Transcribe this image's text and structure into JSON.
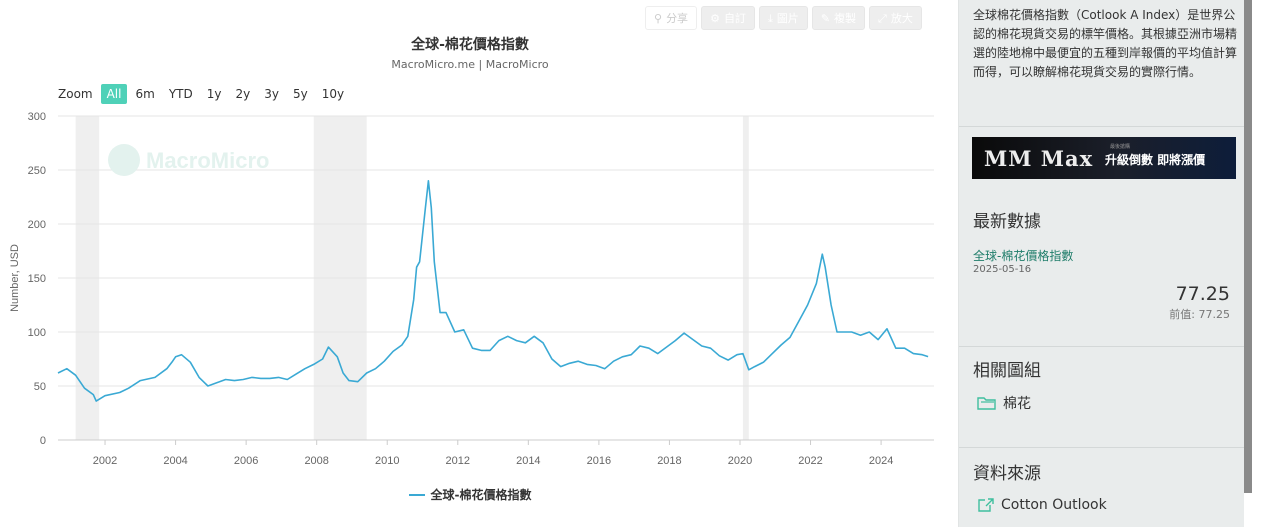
{
  "toolbar": {
    "share_label": "分享",
    "custom_label": "自訂",
    "image_label": "圖片",
    "copy_label": "複製",
    "enlarge_label": "放大"
  },
  "zoom": {
    "label": "Zoom",
    "options": [
      "All",
      "6m",
      "YTD",
      "1y",
      "2y",
      "3y",
      "5y",
      "10y"
    ],
    "active": "All"
  },
  "watermark": "MacroMicro",
  "colors": {
    "series": "#3aa9d4",
    "recession": "#efefef",
    "accent": "#4fd1b8",
    "link": "#1f7d6a"
  },
  "chart_data": {
    "type": "line",
    "title": "全球-棉花價格指數",
    "subtitle": "MacroMicro.me | MacroMicro",
    "ylabel": "Number, USD",
    "xlabel": "",
    "ylim": [
      0,
      300
    ],
    "yticks": [
      0,
      50,
      100,
      150,
      200,
      250,
      300
    ],
    "xticks": [
      "2002",
      "2004",
      "2006",
      "2008",
      "2010",
      "2012",
      "2014",
      "2016",
      "2018",
      "2020",
      "2022",
      "2024"
    ],
    "grid": true,
    "legend_position": "bottom",
    "recession_bands": [
      [
        "2001-03",
        "2001-11"
      ],
      [
        "2007-12",
        "2009-06"
      ],
      [
        "2020-02",
        "2020-04"
      ]
    ],
    "series": [
      {
        "name": "全球-棉花價格指數",
        "points": [
          [
            "2000-09",
            62
          ],
          [
            "2000-12",
            66
          ],
          [
            "2001-03",
            60
          ],
          [
            "2001-06",
            48
          ],
          [
            "2001-09",
            42
          ],
          [
            "2001-10",
            36
          ],
          [
            "2002-01",
            41
          ],
          [
            "2002-06",
            44
          ],
          [
            "2002-09",
            48
          ],
          [
            "2003-01",
            55
          ],
          [
            "2003-06",
            58
          ],
          [
            "2003-10",
            66
          ],
          [
            "2003-12",
            73
          ],
          [
            "2004-01",
            77
          ],
          [
            "2004-03",
            79
          ],
          [
            "2004-06",
            72
          ],
          [
            "2004-09",
            58
          ],
          [
            "2004-12",
            50
          ],
          [
            "2005-03",
            53
          ],
          [
            "2005-06",
            56
          ],
          [
            "2005-09",
            55
          ],
          [
            "2005-12",
            56
          ],
          [
            "2006-03",
            58
          ],
          [
            "2006-06",
            57
          ],
          [
            "2006-09",
            57
          ],
          [
            "2006-12",
            58
          ],
          [
            "2007-03",
            56
          ],
          [
            "2007-06",
            61
          ],
          [
            "2007-09",
            66
          ],
          [
            "2007-12",
            70
          ],
          [
            "2008-03",
            75
          ],
          [
            "2008-05",
            86
          ],
          [
            "2008-08",
            77
          ],
          [
            "2008-10",
            62
          ],
          [
            "2008-12",
            55
          ],
          [
            "2009-03",
            54
          ],
          [
            "2009-06",
            62
          ],
          [
            "2009-09",
            66
          ],
          [
            "2009-12",
            73
          ],
          [
            "2010-03",
            82
          ],
          [
            "2010-06",
            88
          ],
          [
            "2010-08",
            96
          ],
          [
            "2010-10",
            130
          ],
          [
            "2010-11",
            160
          ],
          [
            "2010-12",
            165
          ],
          [
            "2011-02",
            215
          ],
          [
            "2011-03",
            240
          ],
          [
            "2011-04",
            215
          ],
          [
            "2011-05",
            165
          ],
          [
            "2011-07",
            118
          ],
          [
            "2011-09",
            118
          ],
          [
            "2011-12",
            100
          ],
          [
            "2012-03",
            102
          ],
          [
            "2012-06",
            85
          ],
          [
            "2012-09",
            83
          ],
          [
            "2012-12",
            83
          ],
          [
            "2013-03",
            92
          ],
          [
            "2013-06",
            96
          ],
          [
            "2013-09",
            92
          ],
          [
            "2013-12",
            90
          ],
          [
            "2014-03",
            96
          ],
          [
            "2014-06",
            90
          ],
          [
            "2014-09",
            75
          ],
          [
            "2014-12",
            68
          ],
          [
            "2015-03",
            71
          ],
          [
            "2015-06",
            73
          ],
          [
            "2015-09",
            70
          ],
          [
            "2015-12",
            69
          ],
          [
            "2016-03",
            66
          ],
          [
            "2016-06",
            73
          ],
          [
            "2016-09",
            77
          ],
          [
            "2016-12",
            79
          ],
          [
            "2017-03",
            87
          ],
          [
            "2017-06",
            85
          ],
          [
            "2017-09",
            80
          ],
          [
            "2017-12",
            86
          ],
          [
            "2018-03",
            92
          ],
          [
            "2018-06",
            99
          ],
          [
            "2018-09",
            93
          ],
          [
            "2018-12",
            87
          ],
          [
            "2019-03",
            85
          ],
          [
            "2019-06",
            78
          ],
          [
            "2019-09",
            74
          ],
          [
            "2019-12",
            79
          ],
          [
            "2020-02",
            80
          ],
          [
            "2020-04",
            65
          ],
          [
            "2020-06",
            68
          ],
          [
            "2020-09",
            72
          ],
          [
            "2020-12",
            80
          ],
          [
            "2021-03",
            88
          ],
          [
            "2021-06",
            95
          ],
          [
            "2021-09",
            110
          ],
          [
            "2021-12",
            125
          ],
          [
            "2022-03",
            145
          ],
          [
            "2022-05",
            172
          ],
          [
            "2022-06",
            160
          ],
          [
            "2022-08",
            125
          ],
          [
            "2022-10",
            100
          ],
          [
            "2022-12",
            100
          ],
          [
            "2023-03",
            100
          ],
          [
            "2023-06",
            97
          ],
          [
            "2023-09",
            100
          ],
          [
            "2023-12",
            93
          ],
          [
            "2024-03",
            103
          ],
          [
            "2024-06",
            85
          ],
          [
            "2024-09",
            85
          ],
          [
            "2024-12",
            80
          ],
          [
            "2025-03",
            79
          ],
          [
            "2025-05",
            77.25
          ]
        ]
      }
    ]
  },
  "side": {
    "description": "全球棉花價格指數（Cotlook A Index）是世界公認的棉花現貨交易的標竿價格。其根據亞洲市場精選的陸地棉中最便宜的五種到岸報價的平均值計算而得，可以瞭解棉花現貨交易的實際行情。",
    "banner_brand": "MM Max",
    "banner_small": "最後搶購",
    "banner_text": "升級倒數 即將漲價",
    "latest_title": "最新數據",
    "latest_name": "全球-棉花價格指數",
    "latest_date": "2025-05-16",
    "latest_value": "77.25",
    "latest_prev": "前值: 77.25",
    "related_title": "相關圖組",
    "related_item": "棉花",
    "source_title": "資料來源",
    "source_item": "Cotton Outlook"
  }
}
